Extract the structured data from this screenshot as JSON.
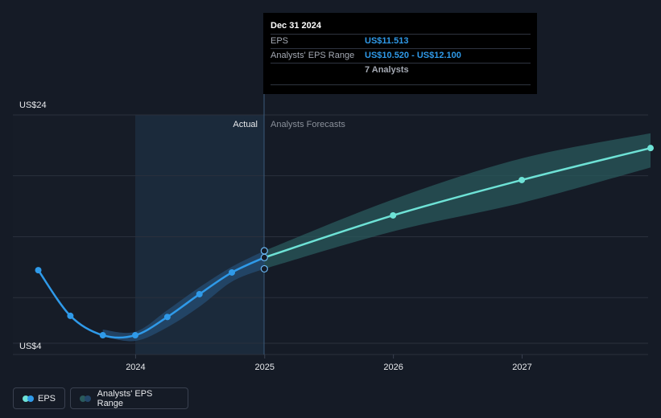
{
  "tooltip": {
    "date": "Dec 31 2024",
    "eps_label": "EPS",
    "eps_value": "US$11.513",
    "range_label": "Analysts' EPS Range",
    "range_value": "US$10.520 - US$12.100",
    "analysts": "7 Analysts"
  },
  "legend": {
    "eps": "EPS",
    "range": "Analysts' EPS Range"
  },
  "colors": {
    "background": "#151b26",
    "actual_region": "#1b2a3b",
    "actual_line": "#2f9ae9",
    "forecast_line": "#6ee2d6",
    "forecast_band": "#2a5a5c",
    "actual_band": "#24476a"
  },
  "chart_data": {
    "type": "line",
    "y_axis": {
      "min": 4,
      "max": 24,
      "labels": [
        "US$24",
        "US$4"
      ]
    },
    "x_axis": {
      "ticks": [
        "2024",
        "2025",
        "2026",
        "2027"
      ]
    },
    "region_labels": {
      "actual": "Actual",
      "forecast": "Analysts Forecasts"
    },
    "series": [
      {
        "name": "EPS",
        "points": [
          {
            "x": "2023-03-31",
            "y": 10.4
          },
          {
            "x": "2023-06-30",
            "y": 6.4
          },
          {
            "x": "2023-09-30",
            "y": 4.7
          },
          {
            "x": "2023-12-31",
            "y": 4.7
          },
          {
            "x": "2024-03-31",
            "y": 6.3
          },
          {
            "x": "2024-06-30",
            "y": 8.3
          },
          {
            "x": "2024-09-30",
            "y": 10.2
          },
          {
            "x": "2024-12-31",
            "y": 11.513
          }
        ]
      },
      {
        "name": "EPS Forecast",
        "points": [
          {
            "x": "2024-12-31",
            "y": 11.513
          },
          {
            "x": "2025-12-31",
            "y": 15.2
          },
          {
            "x": "2026-12-31",
            "y": 18.3
          },
          {
            "x": "2027-12-31",
            "y": 21.1
          }
        ]
      },
      {
        "name": "Analysts' EPS Range",
        "range": [
          {
            "x": "2023-09-30",
            "low": 4.6,
            "high": 5.2
          },
          {
            "x": "2023-12-31",
            "low": 4.2,
            "high": 5.0
          },
          {
            "x": "2024-03-31",
            "low": 5.4,
            "high": 6.9
          },
          {
            "x": "2024-06-30",
            "low": 7.2,
            "high": 8.9
          },
          {
            "x": "2024-09-30",
            "low": 9.4,
            "high": 10.7
          },
          {
            "x": "2024-12-31",
            "low": 10.52,
            "high": 12.1
          },
          {
            "x": "2025-12-31",
            "low": 13.8,
            "high": 16.6
          },
          {
            "x": "2026-12-31",
            "low": 16.3,
            "high": 20.2
          },
          {
            "x": "2027-12-31",
            "low": 19.4,
            "high": 22.4
          }
        ]
      }
    ],
    "grid": true
  }
}
